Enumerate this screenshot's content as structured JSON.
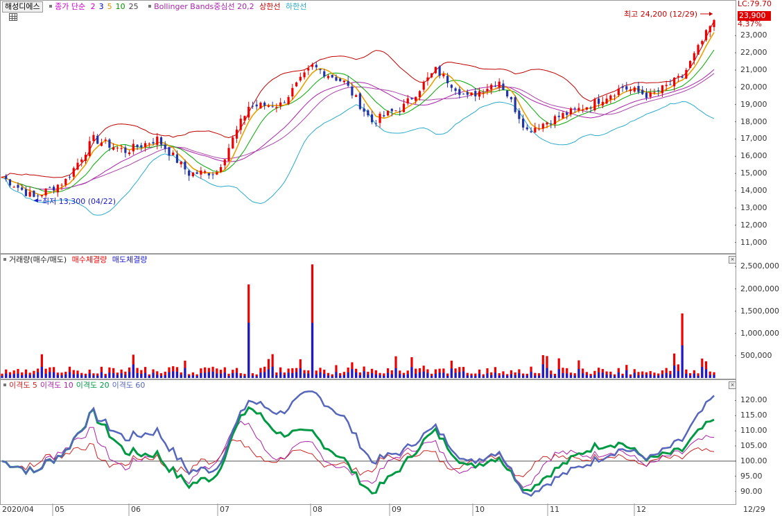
{
  "price_panel": {
    "stock_name": "해성디에스",
    "ma_label": "종가 단순",
    "ma_periods": [
      {
        "label": "2",
        "color": "#cc00cc"
      },
      {
        "label": "3",
        "color": "#0000cc"
      },
      {
        "label": "5",
        "color": "#e09000"
      },
      {
        "label": "10",
        "color": "#009000"
      },
      {
        "label": "25",
        "color": "#444444"
      }
    ],
    "bb_label": "Bollinger Bands중심선 20,2",
    "bb_upper_label": "상한선",
    "bb_lower_label": "하한선",
    "high_annotation": "최고 24,200 (12/29)",
    "low_annotation": "최저 13,300 (04/22)",
    "lc_label": "LC:79.70",
    "current_price": "23,900",
    "change_pct": "4.37%",
    "colors": {
      "up": "#ee0000",
      "down": "#2233aa",
      "bb_upper": "#c00000",
      "bb_lower": "#2aaacc",
      "bb_mid": "#aa22aa",
      "ma5": "#e8a000",
      "ma10": "#00aa00",
      "ma25": "#aa44aa"
    },
    "y_ticks": [
      "23,000",
      "22,000",
      "21,000",
      "20,000",
      "19,000",
      "18,000",
      "17,000",
      "16,000",
      "15,000",
      "14,000",
      "13,000",
      "12,000",
      "11,000"
    ]
  },
  "volume_panel": {
    "title": "거래량(매수/매도)",
    "buy_label": "매수체결량",
    "sell_label": "매도체결량",
    "y_ticks": [
      "2,500,000",
      "2,000,000",
      "1,500,000",
      "1,000,000",
      "500,000"
    ]
  },
  "disparity_panel": {
    "labels": [
      {
        "text": "이격도 5",
        "color": "#cc2222"
      },
      {
        "text": "이격도 10",
        "color": "#aa22aa"
      },
      {
        "text": "이격도 20",
        "color": "#009944"
      },
      {
        "text": "이격도 60",
        "color": "#5566bb"
      }
    ],
    "y_ticks": [
      "120.00",
      "115.00",
      "110.00",
      "105.00",
      "100.00",
      "95.00",
      "90.00"
    ]
  },
  "x_axis": {
    "labels": [
      "2020/04",
      "05",
      "06",
      "07",
      "08",
      "09",
      "10",
      "11",
      "12"
    ],
    "last_label": "12/29"
  },
  "chart_data": {
    "type": "candlestick",
    "title": "해성디에스",
    "x_range": [
      "2020/04",
      "12/29"
    ],
    "price_ylim": [
      10500,
      24500
    ],
    "volume_ylim": [
      0,
      2600000
    ],
    "disparity_ylim": [
      86,
      124
    ],
    "disparity_baseline": 100,
    "price_anchors": [
      {
        "x": "2020/04",
        "close": 14800
      },
      {
        "x": "04/22",
        "close": 13600
      },
      {
        "x": "05",
        "close": 14600
      },
      {
        "x": "05 mid",
        "close": 17000
      },
      {
        "x": "06",
        "close": 16300
      },
      {
        "x": "06 high",
        "close": 17000
      },
      {
        "x": "06 mid",
        "close": 15000
      },
      {
        "x": "07",
        "close": 15100
      },
      {
        "x": "07 rally",
        "close": 18900
      },
      {
        "x": "07 end",
        "close": 19000
      },
      {
        "x": "08",
        "close": 21200
      },
      {
        "x": "08 mid",
        "close": 20300
      },
      {
        "x": "08 low",
        "close": 18000
      },
      {
        "x": "09",
        "close": 18900
      },
      {
        "x": "09 mid",
        "close": 21000
      },
      {
        "x": "10",
        "close": 19400
      },
      {
        "x": "10 mid",
        "close": 20400
      },
      {
        "x": "10 end",
        "close": 17500
      },
      {
        "x": "11",
        "close": 18300
      },
      {
        "x": "11 mid",
        "close": 19000
      },
      {
        "x": "12",
        "close": 20000
      },
      {
        "x": "12 mid",
        "close": 19500
      },
      {
        "x": "12 end",
        "close": 20600
      },
      {
        "x": "12/29",
        "close": 23900
      }
    ],
    "volume_spikes": [
      {
        "x": "07 rally",
        "value": 2100000
      },
      {
        "x": "08",
        "value": 2550000
      },
      {
        "x": "12 end",
        "value": 1450000
      }
    ]
  }
}
